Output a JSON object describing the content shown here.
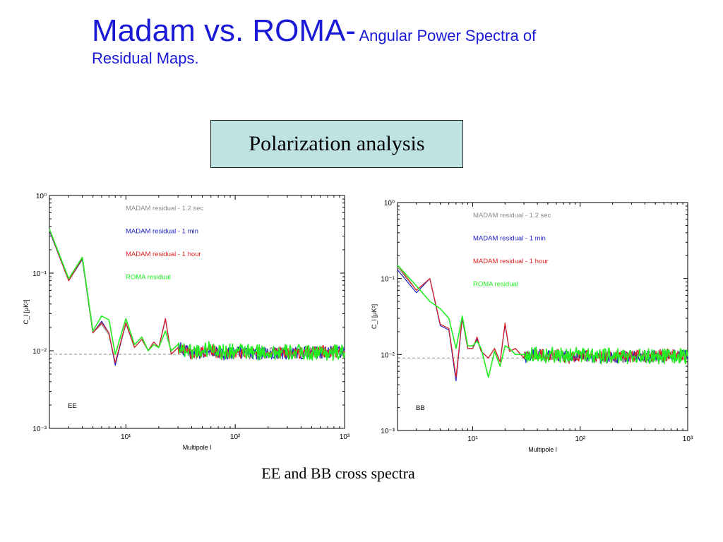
{
  "slide": {
    "title_main": "Madam vs. ROMA-",
    "title_sub_line1": "Angular Power Spectra of",
    "title_sub_line2": "Residual Maps.",
    "box_label": "Polarization analysis",
    "caption": "EE and BB cross spectra"
  },
  "colors": {
    "title": "#1a1ad6",
    "box_fill": "#bfe3e3",
    "madam_1_2_sec": "#8c8c8c",
    "madam_1_min": "#2020c8",
    "madam_1_hour": "#e02020",
    "roma": "#22ee22",
    "noise_level": "#888888"
  },
  "chart_data": [
    {
      "type": "line",
      "panel_label": "EE",
      "xlabel": "Multipole l",
      "ylabel": "C_l [μK²]",
      "xscale": "log",
      "yscale": "log",
      "xlim": [
        2,
        1000
      ],
      "ylim": [
        0.001,
        1
      ],
      "x_ticks": [
        "10^1",
        "10^2",
        "10^3"
      ],
      "y_ticks": [
        "10^0",
        "10^-1",
        "10^-2",
        "10^-3"
      ],
      "legend": [
        "MADAM residual - 1.2 sec",
        "MADAM residual - 1 min",
        "MADAM residual - 1 hour",
        "ROMA residual"
      ],
      "legend_position": "top-center",
      "reference_level": 0.009,
      "series": [
        {
          "name": "MADAM residual - 1.2 sec",
          "x": [
            2,
            3,
            4,
            5,
            6,
            7,
            8,
            10,
            12,
            14,
            16,
            18,
            20,
            23,
            26,
            30,
            35,
            40,
            50,
            60,
            80,
            100,
            150,
            200,
            300,
            500,
            700,
            1000
          ],
          "y": [
            0.35,
            0.08,
            0.15,
            0.017,
            0.022,
            0.016,
            0.007,
            0.022,
            0.011,
            0.014,
            0.01,
            0.013,
            0.011,
            0.025,
            0.009,
            0.011,
            0.01,
            0.009,
            0.0095,
            0.01,
            0.009,
            0.0095,
            0.0092,
            0.0093,
            0.0093,
            0.0094,
            0.0095,
            0.0097
          ]
        },
        {
          "name": "MADAM residual - 1 min",
          "x": [
            2,
            3,
            4,
            5,
            6,
            7,
            8,
            10,
            12,
            14,
            16,
            18,
            20,
            23,
            26,
            30,
            35,
            40,
            50,
            60,
            80,
            100,
            150,
            200,
            300,
            500,
            700,
            1000
          ],
          "y": [
            0.35,
            0.08,
            0.15,
            0.017,
            0.024,
            0.017,
            0.0065,
            0.023,
            0.011,
            0.014,
            0.01,
            0.013,
            0.011,
            0.026,
            0.009,
            0.011,
            0.01,
            0.009,
            0.0095,
            0.01,
            0.009,
            0.0095,
            0.0092,
            0.0093,
            0.0093,
            0.0094,
            0.0096,
            0.0098
          ]
        },
        {
          "name": "MADAM residual - 1 hour",
          "x": [
            2,
            3,
            4,
            5,
            6,
            7,
            8,
            10,
            12,
            14,
            16,
            18,
            20,
            23,
            26,
            30,
            35,
            40,
            50,
            60,
            80,
            100,
            150,
            200,
            300,
            500,
            700,
            1000
          ],
          "y": [
            0.36,
            0.08,
            0.155,
            0.017,
            0.023,
            0.017,
            0.007,
            0.023,
            0.011,
            0.014,
            0.01,
            0.013,
            0.011,
            0.026,
            0.009,
            0.011,
            0.01,
            0.009,
            0.0096,
            0.01,
            0.0091,
            0.0096,
            0.0093,
            0.0094,
            0.0095,
            0.0096,
            0.0098,
            0.01
          ]
        },
        {
          "name": "ROMA residual",
          "x": [
            2,
            3,
            4,
            5,
            6,
            7,
            8,
            10,
            12,
            14,
            16,
            18,
            20,
            23,
            26,
            30,
            35,
            40,
            50,
            60,
            80,
            100,
            150,
            200,
            300,
            500,
            700,
            1000
          ],
          "y": [
            0.37,
            0.085,
            0.16,
            0.018,
            0.028,
            0.025,
            0.009,
            0.026,
            0.012,
            0.015,
            0.01,
            0.012,
            0.011,
            0.018,
            0.01,
            0.012,
            0.01,
            0.01,
            0.01,
            0.011,
            0.0095,
            0.01,
            0.0095,
            0.0096,
            0.0095,
            0.0095,
            0.0095,
            0.0095
          ]
        }
      ]
    },
    {
      "type": "line",
      "panel_label": "BB",
      "xlabel": "Multipole l",
      "ylabel": "C_l [μK²]",
      "xscale": "log",
      "yscale": "log",
      "xlim": [
        2,
        1000
      ],
      "ylim": [
        0.001,
        1
      ],
      "x_ticks": [
        "10^1",
        "10^2",
        "10^3"
      ],
      "y_ticks": [
        "10^0",
        "10^-1",
        "10^-2",
        "10^-3"
      ],
      "legend": [
        "MADAM residual - 1.2 sec",
        "MADAM residual - 1 min",
        "MADAM residual - 1 hour",
        "ROMA residual"
      ],
      "legend_position": "top-center",
      "reference_level": 0.009,
      "series": [
        {
          "name": "MADAM residual - 1.2 sec",
          "x": [
            2,
            3,
            4,
            5,
            6,
            7,
            8,
            9,
            10,
            11,
            12,
            14,
            16,
            18,
            20,
            22,
            25,
            30,
            35,
            40,
            50,
            60,
            80,
            100,
            150,
            200,
            300,
            500,
            700,
            1000
          ],
          "y": [
            0.14,
            0.07,
            0.1,
            0.025,
            0.022,
            0.005,
            0.03,
            0.012,
            0.012,
            0.016,
            0.011,
            0.009,
            0.012,
            0.008,
            0.025,
            0.011,
            0.012,
            0.009,
            0.01,
            0.01,
            0.0095,
            0.01,
            0.009,
            0.0095,
            0.0092,
            0.0093,
            0.0094,
            0.0095,
            0.0096,
            0.0097
          ]
        },
        {
          "name": "MADAM residual - 1 min",
          "x": [
            2,
            3,
            4,
            5,
            6,
            7,
            8,
            9,
            10,
            11,
            12,
            14,
            16,
            18,
            20,
            22,
            25,
            30,
            35,
            40,
            50,
            60,
            80,
            100,
            150,
            200,
            300,
            500,
            700,
            1000
          ],
          "y": [
            0.13,
            0.065,
            0.1,
            0.024,
            0.021,
            0.0045,
            0.03,
            0.012,
            0.012,
            0.016,
            0.011,
            0.009,
            0.012,
            0.008,
            0.025,
            0.011,
            0.012,
            0.009,
            0.01,
            0.01,
            0.0095,
            0.01,
            0.009,
            0.0095,
            0.0092,
            0.0093,
            0.0094,
            0.0095,
            0.0097,
            0.0098
          ]
        },
        {
          "name": "MADAM residual - 1 hour",
          "x": [
            2,
            3,
            4,
            5,
            6,
            7,
            8,
            9,
            10,
            11,
            12,
            14,
            16,
            18,
            20,
            22,
            25,
            30,
            35,
            40,
            50,
            60,
            80,
            100,
            150,
            200,
            300,
            500,
            700,
            1000
          ],
          "y": [
            0.15,
            0.07,
            0.1,
            0.025,
            0.022,
            0.005,
            0.031,
            0.012,
            0.012,
            0.017,
            0.011,
            0.009,
            0.012,
            0.008,
            0.026,
            0.011,
            0.012,
            0.009,
            0.01,
            0.01,
            0.0096,
            0.01,
            0.0091,
            0.0096,
            0.0093,
            0.0094,
            0.0095,
            0.0097,
            0.0099,
            0.01
          ]
        },
        {
          "name": "ROMA residual",
          "x": [
            2,
            3,
            4,
            5,
            6,
            7,
            8,
            9,
            10,
            11,
            12,
            14,
            16,
            18,
            20,
            22,
            25,
            30,
            35,
            40,
            50,
            60,
            80,
            100,
            150,
            200,
            300,
            500,
            700,
            1000
          ],
          "y": [
            0.15,
            0.08,
            0.05,
            0.04,
            0.03,
            0.012,
            0.032,
            0.013,
            0.013,
            0.015,
            0.012,
            0.005,
            0.011,
            0.007,
            0.013,
            0.012,
            0.01,
            0.01,
            0.01,
            0.01,
            0.0097,
            0.01,
            0.0095,
            0.01,
            0.0095,
            0.0096,
            0.0095,
            0.0095,
            0.0095,
            0.0095
          ]
        }
      ]
    }
  ]
}
